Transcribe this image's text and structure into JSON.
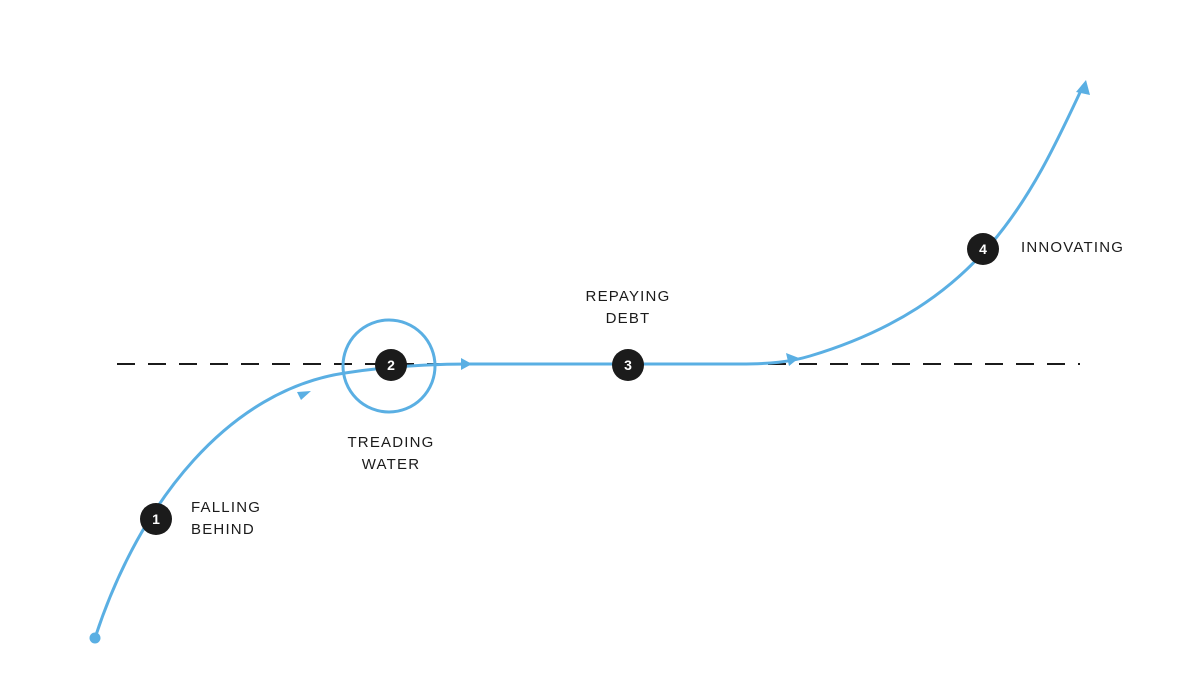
{
  "diagram": {
    "colors": {
      "curve": "#5aafe3",
      "baseline": "#1b1b1b",
      "marker_fill": "#1b1b1b",
      "marker_text": "#ffffff",
      "label_text": "#1b1b1b"
    },
    "stages": [
      {
        "number": "1",
        "label_lines": [
          "FALLING",
          "BEHIND"
        ]
      },
      {
        "number": "2",
        "label_lines": [
          "TREADING",
          "WATER"
        ]
      },
      {
        "number": "3",
        "label_lines": [
          "REPAYING",
          "DEBT"
        ]
      },
      {
        "number": "4",
        "label_lines": [
          "INNOVATING"
        ]
      }
    ]
  }
}
